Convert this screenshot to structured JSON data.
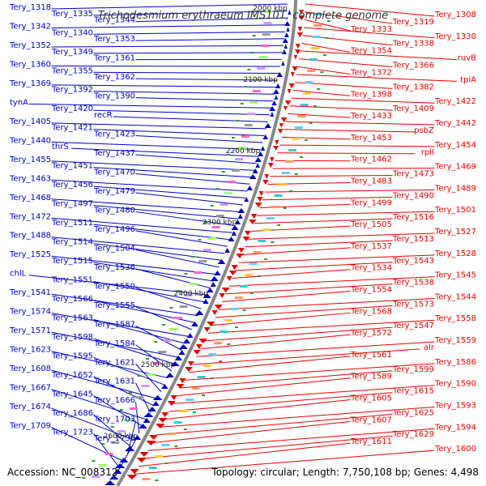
{
  "title": "Trichodesmium erythraeum IMS101, complete genome",
  "accession": "Accession: NC_008312",
  "summary": "Topology: circular; Length: 7,750,108 bp; Genes: 4,498",
  "ticks": [
    "2000 kbp",
    "2100 kbp",
    "2200 kbp",
    "2300 kbp",
    "2400 kbp",
    "2500 kbp",
    "2600 kbp"
  ],
  "left_labels": [
    "Tery_1318",
    "Tery_1335",
    "Tery_1344",
    "Tery_1342",
    "Tery_1340",
    "Tery_1353",
    "Tery_1352",
    "Tery_1349",
    "Tery_1361",
    "Tery_1360",
    "Tery_1355",
    "Tery_1362",
    "Tery_1369",
    "Tery_1392",
    "Tery_1390",
    "tynA",
    "Tery_1420",
    "recR",
    "Tery_1405",
    "Tery_1421",
    "Tery_1423",
    "Tery_1440",
    "thrS",
    "Tery_1437",
    "Tery_1455",
    "Tery_1451",
    "Tery_1470",
    "Tery_1463",
    "Tery_1456",
    "Tery_1479",
    "Tery_1468",
    "Tery_1497",
    "Tery_1480",
    "Tery_1472",
    "Tery_1511",
    "Tery_1496",
    "Tery_1488",
    "Tery_1514",
    "Tery_1504",
    "Tery_1525",
    "Tery_1515",
    "Tery_1536",
    "chlL",
    "Tery_1551",
    "Tery_1550",
    "Tery_1541",
    "Tery_1566",
    "Tery_1555",
    "Tery_1574",
    "Tery_1563",
    "Tery_1587",
    "Tery_1571",
    "Tery_1598",
    "Tery_1584",
    "Tery_1623",
    "Tery_1595",
    "Tery_1621",
    "Tery_1608",
    "Tery_1652",
    "Tery_1631",
    "Tery_1667",
    "Tery_1645",
    "Tery_1666",
    "Tery_1674",
    "Tery_1686",
    "Tery_1703",
    "Tery_1709",
    "Tery_1723",
    "Tery_1738"
  ],
  "right_labels": [
    "Tery_1308",
    "Tery_1319",
    "Tery_1333",
    "Tery_1330",
    "Tery_1338",
    "Tery_1354",
    "ruvB",
    "Tery_1366",
    "Tery_1372",
    "tpiA",
    "Tery_1382",
    "Tery_1398",
    "Tery_1422",
    "Tery_1409",
    "Tery_1433",
    "Tery_1442",
    "psbZ",
    "Tery_1453",
    "Tery_1454",
    "rplI",
    "Tery_1462",
    "Tery_1469",
    "Tery_1473",
    "Tery_1483",
    "Tery_1489",
    "Tery_1490",
    "Tery_1499",
    "Tery_1501",
    "Tery_1516",
    "Tery_1505",
    "Tery_1527",
    "Tery_1513",
    "Tery_1537",
    "Tery_1528",
    "Tery_1543",
    "Tery_1534",
    "Tery_1545",
    "Tery_1538",
    "Tery_1554",
    "Tery_1544",
    "Tery_1573",
    "Tery_1568",
    "Tery_1558",
    "Tery_1547",
    "Tery_1572",
    "Tery_1559",
    "alr",
    "Tery_1561",
    "Tery_1586",
    "Tery_1599",
    "Tery_1589",
    "Tery_1590",
    "Tery_1615",
    "Tery_1605",
    "Tery_1593",
    "Tery_1625",
    "Tery_1607",
    "Tery_1594",
    "Tery_1629",
    "Tery_1611",
    "Tery_1600"
  ],
  "colors": {
    "forward": "#0000cc",
    "reverse": "#ee0000",
    "backbone": "#888888",
    "title": "#333333"
  }
}
